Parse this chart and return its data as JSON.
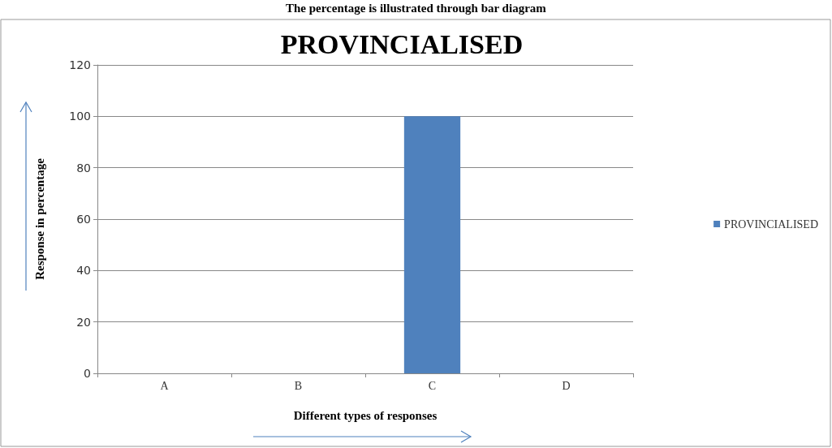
{
  "chart_data": {
    "type": "bar",
    "title": "PROVINCIALISED",
    "annotations": [
      "The percentage is illustrated through bar diagram"
    ],
    "xlabel": "Different types of responses",
    "ylabel": "Response in percentage",
    "categories": [
      "A",
      "B",
      "C",
      "D"
    ],
    "series": [
      {
        "name": "PROVINCIALISED",
        "color": "#4f81bd",
        "values": [
          0,
          0,
          100,
          0
        ]
      }
    ],
    "ylim": [
      0,
      120
    ],
    "yticks": [
      0,
      20,
      40,
      60,
      80,
      100,
      120
    ],
    "grid": "y",
    "legend": "right"
  }
}
